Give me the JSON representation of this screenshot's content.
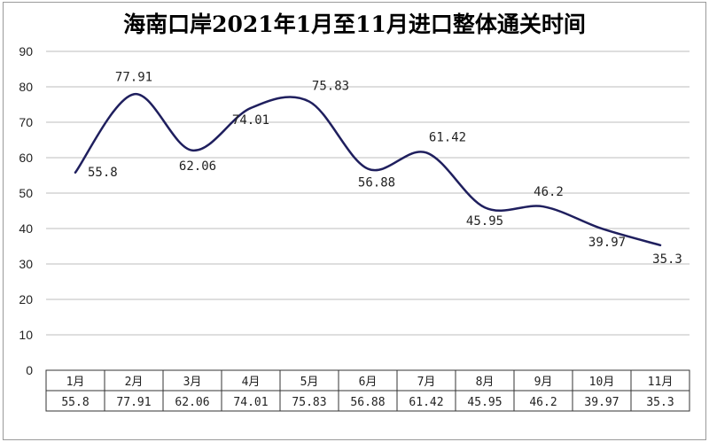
{
  "chart_data": {
    "type": "line",
    "title": "海南口岸2021年1月至11月进口整体通关时间",
    "categories": [
      "1月",
      "2月",
      "3月",
      "4月",
      "5月",
      "6月",
      "7月",
      "8月",
      "9月",
      "10月",
      "11月"
    ],
    "values": [
      55.8,
      77.91,
      62.06,
      74.01,
      75.83,
      56.88,
      61.42,
      45.95,
      46.2,
      39.97,
      35.3
    ],
    "value_labels": [
      "55.8",
      "77.91",
      "62.06",
      "74.01",
      "75.83",
      "56.88",
      "61.42",
      "45.95",
      "46.2",
      "39.97",
      "35.3"
    ],
    "ylim": [
      0,
      90
    ],
    "yticks": [
      "0",
      "10",
      "20",
      "30",
      "40",
      "50",
      "60",
      "70",
      "80",
      "90"
    ],
    "grid": true,
    "smooth": true,
    "data_table": true,
    "line_color": "#1f1f5e"
  }
}
